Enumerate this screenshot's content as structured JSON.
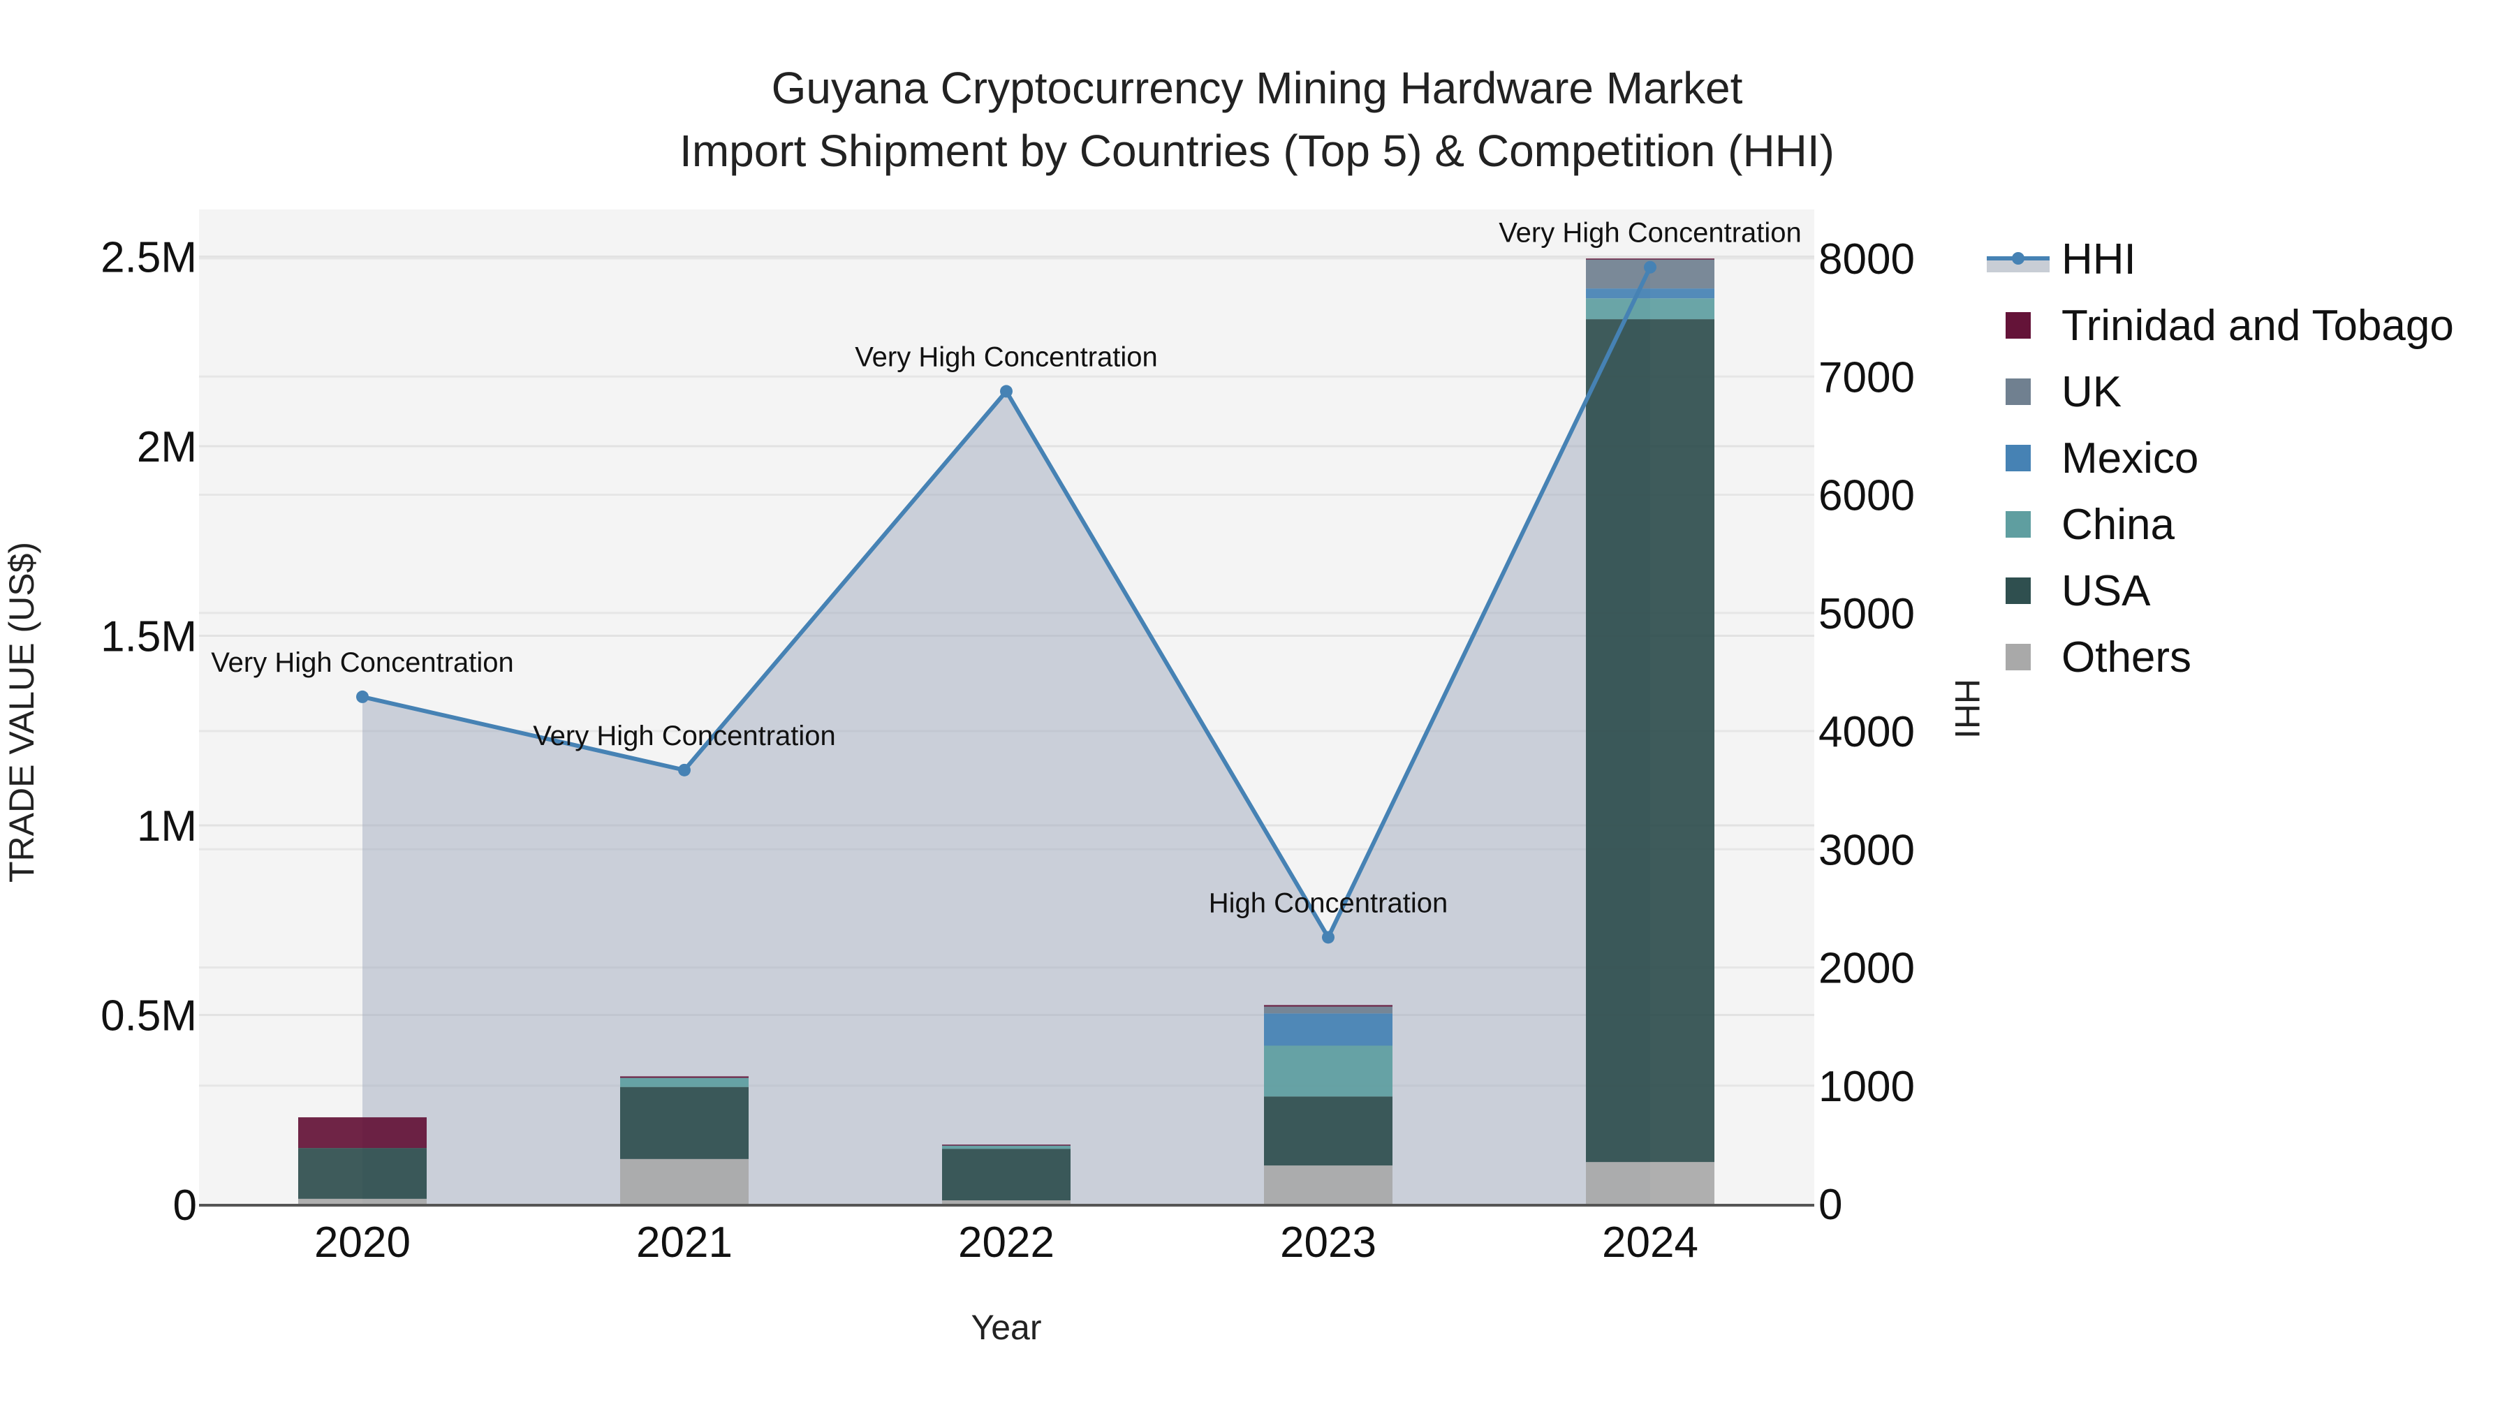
{
  "chart_data": {
    "type": "bar",
    "stacked": true,
    "title": "Guyana Cryptocurrency Mining Hardware Market",
    "subtitle": "Import Shipment by Countries (Top 5) & Competition (HHI)",
    "xlabel": "Year",
    "ylabel": "TRADE VALUE (US$)",
    "y2label": "HHI",
    "categories": [
      "2020",
      "2021",
      "2022",
      "2023",
      "2024"
    ],
    "ylim": [
      0,
      2600000
    ],
    "y_ticks": [
      0,
      500000,
      1000000,
      1500000,
      2000000,
      2500000
    ],
    "y_tick_labels": [
      "0",
      "0.5M",
      "1M",
      "1.5M",
      "2M",
      "2.5M"
    ],
    "y2lim": [
      0,
      8300
    ],
    "y2_ticks": [
      0,
      1000,
      2000,
      3000,
      4000,
      5000,
      6000,
      7000,
      8000
    ],
    "y2_tick_labels": [
      "0",
      "1000",
      "2000",
      "3000",
      "4000",
      "5000",
      "6000",
      "7000",
      "8000"
    ],
    "grid": true,
    "legend_position": "right",
    "series": [
      {
        "name": "Others",
        "color": "#A9A9A9",
        "values": [
          15000,
          120000,
          11000,
          103000,
          112000
        ]
      },
      {
        "name": "USA",
        "color": "#2F4F4F",
        "values": [
          134000,
          190000,
          136000,
          182000,
          2223000
        ]
      },
      {
        "name": "China",
        "color": "#5F9EA0",
        "values": [
          0,
          24000,
          9000,
          134000,
          55000
        ]
      },
      {
        "name": "Mexico",
        "color": "#4682B4",
        "values": [
          0,
          0,
          0,
          85000,
          26000
        ]
      },
      {
        "name": "UK",
        "color": "#708090",
        "values": [
          0,
          0,
          0,
          18000,
          77000
        ]
      },
      {
        "name": "Trinidad and Tobago",
        "color": "#641338",
        "values": [
          81000,
          4000,
          2000,
          4000,
          2000
        ]
      }
    ],
    "line_series": {
      "name": "HHI",
      "color": "#4682B4",
      "fill": "rgba(160,170,190,0.5)",
      "axis": "y2",
      "values": [
        4290,
        3670,
        6875,
        2255,
        7925
      ],
      "annotations": [
        "Very High Concentration",
        "Very High Concentration",
        "Very High Concentration",
        "High Concentration",
        "Very High Concentration"
      ]
    },
    "legend": [
      "HHI",
      "Trinidad and Tobago",
      "UK",
      "Mexico",
      "China",
      "USA",
      "Others"
    ]
  }
}
